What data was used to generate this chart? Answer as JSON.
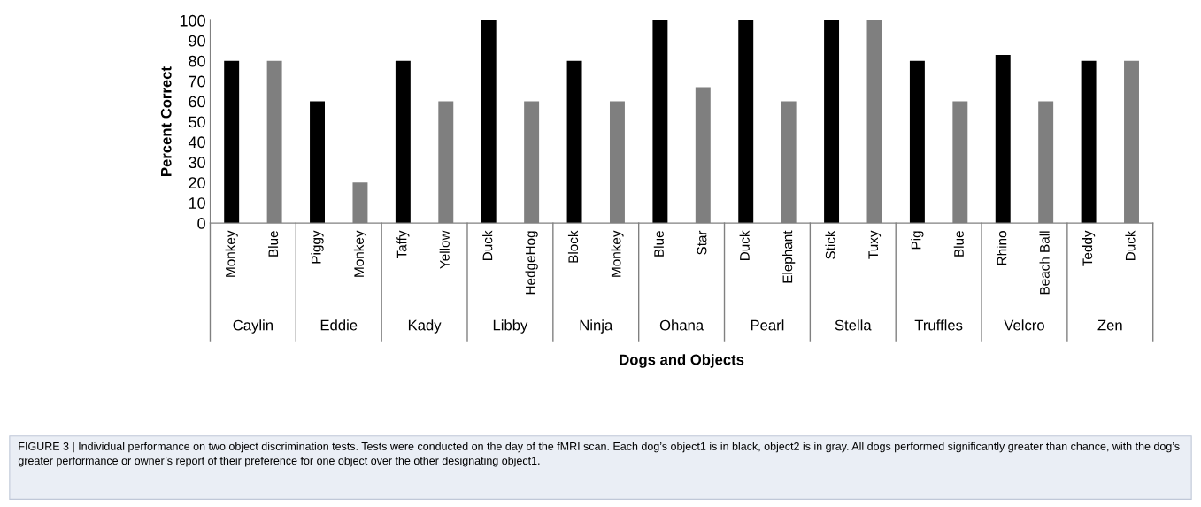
{
  "chart_data": {
    "type": "bar",
    "ylabel": "Percent Correct",
    "xlabel": "Dogs and Objects",
    "categories": [
      "Monkey",
      "Blue",
      "Piggy",
      "Monkey",
      "Taffy",
      "Yellow",
      "Duck",
      "HedgeHog",
      "Block",
      "Monkey",
      "Blue",
      "Star",
      "Duck",
      "Elephant",
      "Stick",
      "Tuxy",
      "Pig",
      "Blue",
      "Rhino",
      "Beach Ball",
      "Teddy",
      "Duck"
    ],
    "values": [
      80,
      80,
      60,
      20,
      80,
      60,
      100,
      60,
      80,
      60,
      100,
      67,
      100,
      60,
      100,
      100,
      80,
      60,
      83,
      60,
      80,
      80
    ],
    "colors": [
      "#000000",
      "#7f7f7f",
      "#000000",
      "#7f7f7f",
      "#000000",
      "#7f7f7f",
      "#000000",
      "#7f7f7f",
      "#000000",
      "#7f7f7f",
      "#000000",
      "#7f7f7f",
      "#000000",
      "#7f7f7f",
      "#000000",
      "#7f7f7f",
      "#000000",
      "#7f7f7f",
      "#000000",
      "#7f7f7f",
      "#000000",
      "#7f7f7f"
    ],
    "ylim": [
      0,
      100
    ],
    "yticks": [
      0,
      10,
      20,
      30,
      40,
      50,
      60,
      70,
      80,
      90,
      100
    ],
    "grid": false,
    "legend": false,
    "annotations": [
      "Caylin",
      "Eddie",
      "Kady",
      "Libby",
      "Ninja",
      "Ohana",
      "Pearl",
      "Stella",
      "Truffles",
      "Velcro",
      "Zen",
      "FIGURE 3 | Individual performance on two object discrimination tests. Tests were conducted on the day of the fMRI scan. Each dog’s object1 is in black, object2 is in gray. All dogs performed significantly greater than chance, with the dog’s greater performance or owner’s report of their preference for one object over the other designating object1."
    ]
  }
}
